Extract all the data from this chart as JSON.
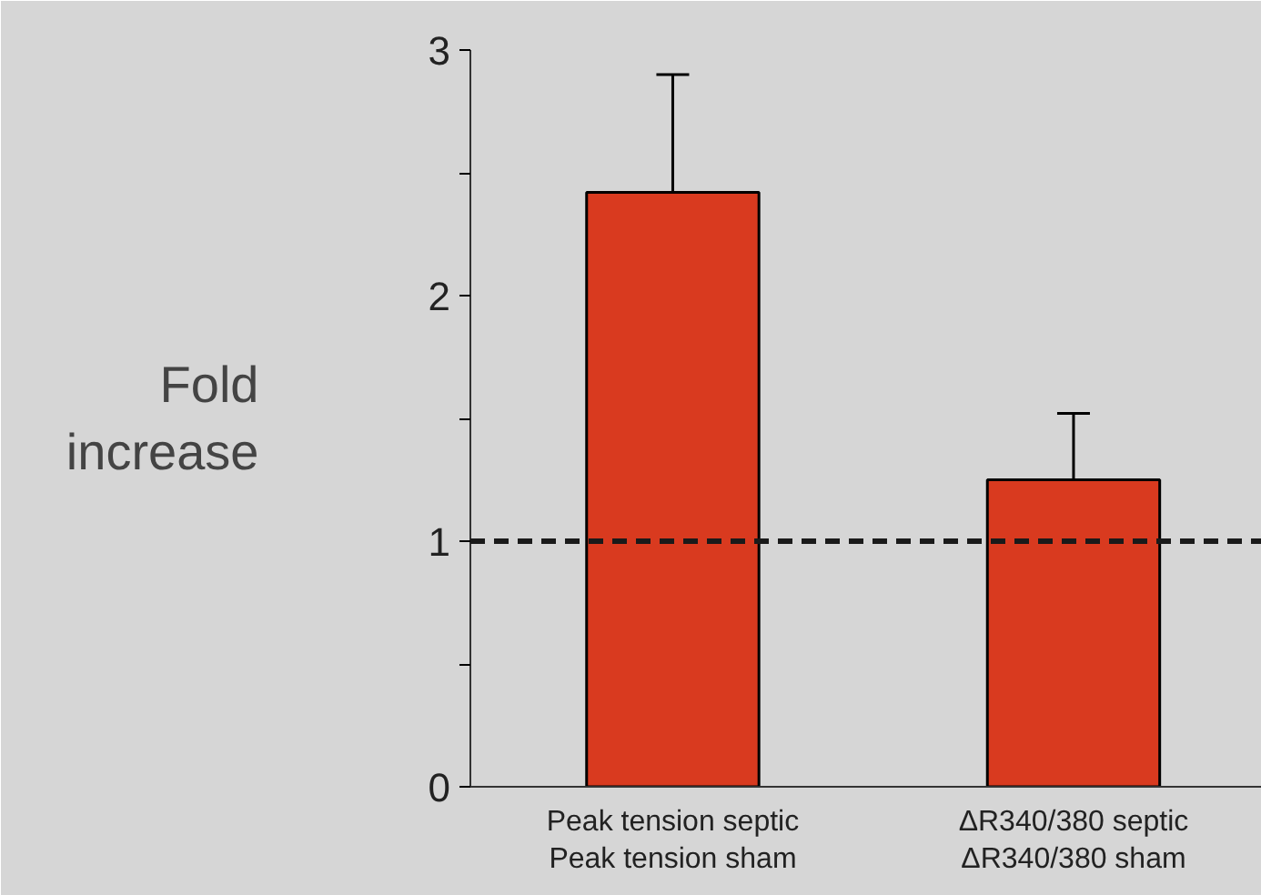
{
  "chart_data": {
    "type": "bar",
    "ylabel": "Fold\nincrease",
    "categories": [
      "Peak tension septic\nPeak tension sham",
      "ΔR340/380 septic\nΔR340/380 sham"
    ],
    "values": [
      2.42,
      1.25
    ],
    "errors": [
      [
        2.42,
        2.9
      ],
      [
        1.25,
        1.52
      ]
    ],
    "color": "#d93a1f",
    "ylim": [
      0,
      3
    ],
    "yticks": [
      0,
      {
        "value": 0.5,
        "label": null
      },
      1,
      {
        "value": 1.5,
        "label": null
      },
      2,
      {
        "value": 2.5,
        "label": null
      },
      3
    ],
    "ref_lines": [
      {
        "axis": "y",
        "value": 1,
        "label": null,
        "color": "#1a1a1a",
        "line_style": "dashed"
      }
    ],
    "grid": false
  }
}
